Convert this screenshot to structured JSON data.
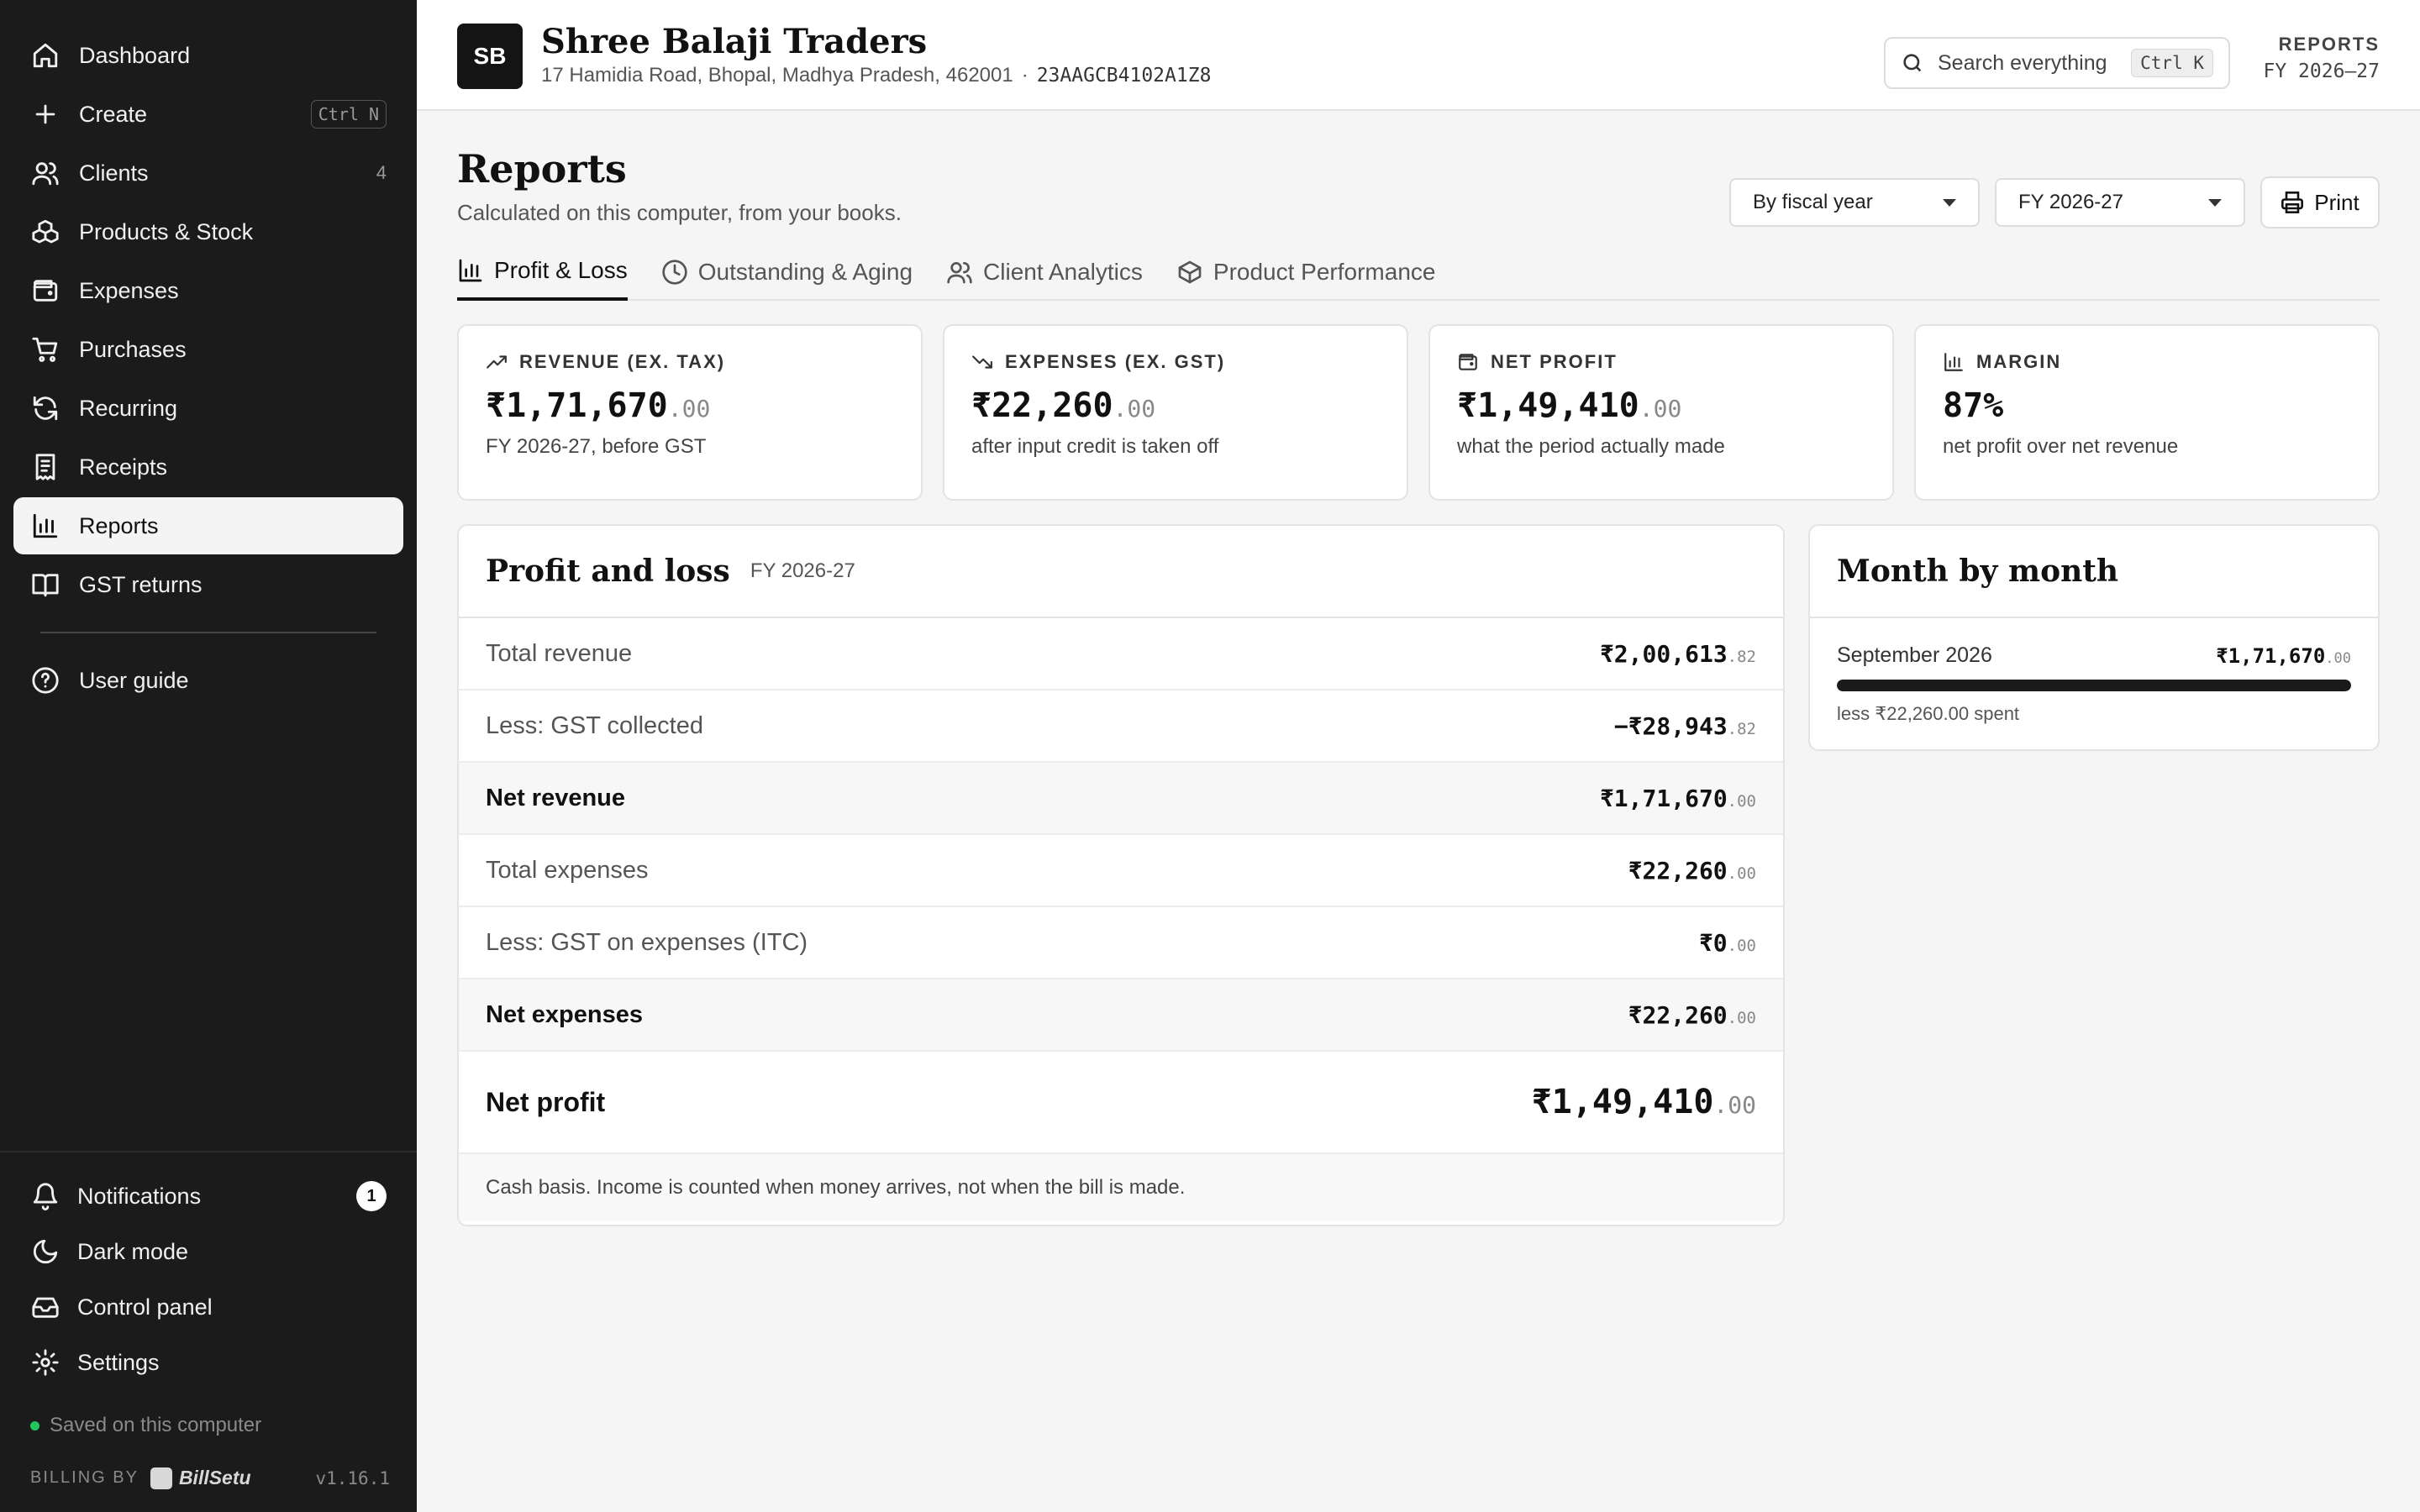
{
  "sidebar": {
    "items": [
      {
        "label": "Dashboard",
        "icon": "home-icon"
      },
      {
        "label": "Create",
        "icon": "plus-icon",
        "shortcut": "Ctrl N"
      },
      {
        "label": "Clients",
        "icon": "users-icon",
        "count": "4"
      },
      {
        "label": "Products & Stock",
        "icon": "boxes-icon"
      },
      {
        "label": "Expenses",
        "icon": "wallet-icon"
      },
      {
        "label": "Purchases",
        "icon": "cart-icon"
      },
      {
        "label": "Recurring",
        "icon": "refresh-icon"
      },
      {
        "label": "Receipts",
        "icon": "receipt-icon"
      },
      {
        "label": "Reports",
        "icon": "bar-chart-icon",
        "active": true
      },
      {
        "label": "GST returns",
        "icon": "book-icon"
      }
    ],
    "user_guide": "User guide",
    "bottom": {
      "notifications": "Notifications",
      "notifications_count": "1",
      "dark_mode": "Dark mode",
      "control_panel": "Control panel",
      "settings": "Settings"
    },
    "saved": "Saved on this computer",
    "billing_by": "BILLING BY",
    "brand": "BillSetu",
    "version": "v1.16.1"
  },
  "header": {
    "logo": "SB",
    "business_name": "Shree Balaji Traders",
    "address": "17 Hamidia Road, Bhopal, Madhya Pradesh, 462001",
    "separator": "·",
    "gstin": "23AAGCB4102A1Z8",
    "search_placeholder": "Search everything",
    "search_shortcut": "Ctrl K",
    "section": "REPORTS",
    "period": "FY 2026–27"
  },
  "main": {
    "title": "Reports",
    "subtitle": "Calculated on this computer, from your books.",
    "period_mode": "By fiscal year",
    "fiscal_year": "FY 2026-27",
    "print_label": "Print",
    "tabs": [
      {
        "label": "Profit & Loss",
        "icon": "bar-chart-icon",
        "active": true
      },
      {
        "label": "Outstanding & Aging",
        "icon": "clock-icon"
      },
      {
        "label": "Client Analytics",
        "icon": "users-icon"
      },
      {
        "label": "Product Performance",
        "icon": "package-icon"
      }
    ],
    "cards": [
      {
        "label": "REVENUE (EX. TAX)",
        "icon": "trending-up-icon",
        "value": "₹1,71,670",
        "decimal": ".00",
        "note": "FY 2026-27, before GST"
      },
      {
        "label": "EXPENSES (EX. GST)",
        "icon": "trending-down-icon",
        "value": "₹22,260",
        "decimal": ".00",
        "note": "after input credit is taken off"
      },
      {
        "label": "NET PROFIT",
        "icon": "wallet-icon",
        "value": "₹1,49,410",
        "decimal": ".00",
        "note": "what the period actually made"
      },
      {
        "label": "MARGIN",
        "icon": "bar-chart-icon",
        "value": "87%",
        "decimal": "",
        "note": "net profit over net revenue"
      }
    ],
    "pl": {
      "title": "Profit and loss",
      "period": "FY 2026-27",
      "rows": [
        {
          "label": "Total revenue",
          "amount": "₹2,00,613",
          "decimal": ".82"
        },
        {
          "label": "Less: GST collected",
          "amount": "−₹28,943",
          "decimal": ".82"
        },
        {
          "label": "Net revenue",
          "amount": "₹1,71,670",
          "decimal": ".00"
        },
        {
          "label": "Total expenses",
          "amount": "₹22,260",
          "decimal": ".00"
        },
        {
          "label": "Less: GST on expenses (ITC)",
          "amount": "₹0",
          "decimal": ".00"
        },
        {
          "label": "Net expenses",
          "amount": "₹22,260",
          "decimal": ".00"
        },
        {
          "label": "Net profit",
          "amount": "₹1,49,410",
          "decimal": ".00"
        }
      ],
      "footer": "Cash basis. Income is counted when money arrives, not when the bill is made."
    },
    "month_by_month": {
      "title": "Month by month",
      "months": [
        {
          "month": "September 2026",
          "amount": "₹1,71,670",
          "decimal": ".00",
          "fill_fraction": 1.0,
          "note": "less ₹22,260.00 spent"
        }
      ]
    }
  }
}
